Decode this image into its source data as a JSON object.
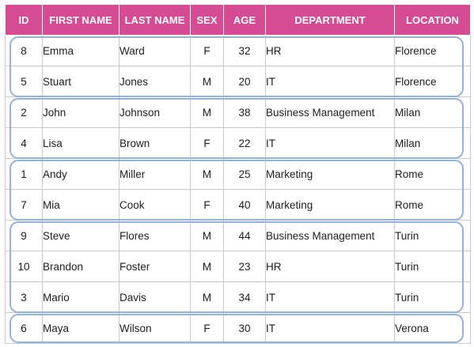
{
  "colors": {
    "header_bg": "#d54c95",
    "header_text": "#ffffff",
    "gridline": "#c5c9d3",
    "group_outline": "#95b3d7"
  },
  "table": {
    "headers": {
      "id": "ID",
      "first_name": "FIRST NAME",
      "last_name": "LAST NAME",
      "sex": "SEX",
      "age": "AGE",
      "department": "DEPARTMENT",
      "location": "LOCATION"
    },
    "rows": [
      {
        "id": "8",
        "first_name": "Emma",
        "last_name": "Ward",
        "sex": "F",
        "age": "32",
        "department": "HR",
        "location": "Florence"
      },
      {
        "id": "5",
        "first_name": "Stuart",
        "last_name": "Jones",
        "sex": "M",
        "age": "20",
        "department": "IT",
        "location": "Florence"
      },
      {
        "id": "2",
        "first_name": "John",
        "last_name": "Johnson",
        "sex": "M",
        "age": "38",
        "department": "Business Management",
        "location": "Milan"
      },
      {
        "id": "4",
        "first_name": "Lisa",
        "last_name": "Brown",
        "sex": "F",
        "age": "22",
        "department": "IT",
        "location": "Milan"
      },
      {
        "id": "1",
        "first_name": "Andy",
        "last_name": "Miller",
        "sex": "M",
        "age": "25",
        "department": "Marketing",
        "location": "Rome"
      },
      {
        "id": "7",
        "first_name": "Mia",
        "last_name": "Cook",
        "sex": "F",
        "age": "40",
        "department": "Marketing",
        "location": "Rome"
      },
      {
        "id": "9",
        "first_name": "Steve",
        "last_name": "Flores",
        "sex": "M",
        "age": "44",
        "department": "Business Management",
        "location": "Turin"
      },
      {
        "id": "10",
        "first_name": "Brandon",
        "last_name": "Foster",
        "sex": "M",
        "age": "23",
        "department": "HR",
        "location": "Turin"
      },
      {
        "id": "3",
        "first_name": "Mario",
        "last_name": "Davis",
        "sex": "M",
        "age": "34",
        "department": "IT",
        "location": "Turin"
      },
      {
        "id": "6",
        "first_name": "Maya",
        "last_name": "Wilson",
        "sex": "F",
        "age": "30",
        "department": "IT",
        "location": "Verona"
      }
    ]
  }
}
